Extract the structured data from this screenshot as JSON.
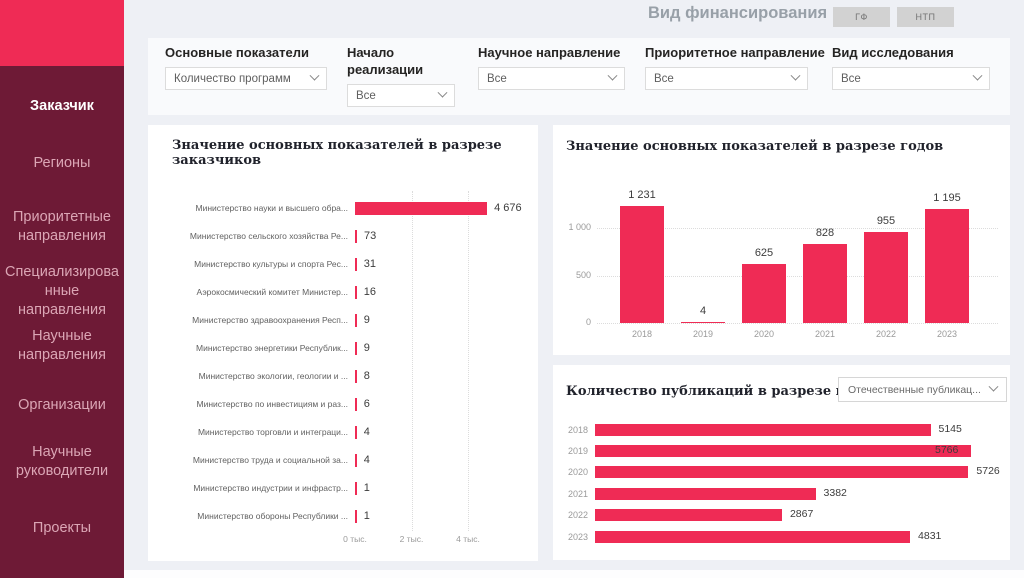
{
  "header": {
    "title": "Вид финансирования",
    "buttons": [
      {
        "label": "ГФ"
      },
      {
        "label": "НТП"
      }
    ]
  },
  "sidebar": {
    "items": [
      {
        "label": "Заказчик",
        "active": true
      },
      {
        "label": "Регионы",
        "active": false
      },
      {
        "label": "Приоритетные направления",
        "active": false
      },
      {
        "label": "Специализированные направления",
        "active": false
      },
      {
        "label": "Научные направления",
        "active": false
      },
      {
        "label": "Организации",
        "active": false
      },
      {
        "label": "Научные руководители",
        "active": false
      },
      {
        "label": "Проекты",
        "active": false
      }
    ]
  },
  "filters": [
    {
      "label": "Основные показатели",
      "value": "Количество программ"
    },
    {
      "label": "Начало реализации",
      "value": "Все"
    },
    {
      "label": "Научное направление",
      "value": "Все"
    },
    {
      "label": "Приоритетное направление",
      "value": "Все"
    },
    {
      "label": "Вид исследования",
      "value": "Все"
    }
  ],
  "chart_data": [
    {
      "id": "customers",
      "type": "bar",
      "orientation": "horizontal",
      "title": "Значение основных показателей в разрезе заказчиков",
      "categories": [
        "Министерство науки и высшего обра...",
        "Министерство сельского хозяйства Ре...",
        "Министерство культуры и спорта Рес...",
        "Аэрокосмический комитет Министер...",
        "Министерство здравоохранения Респ...",
        "Министерство энергетики Республик...",
        "Министерство экологии, геологии и ...",
        "Министерство по инвестициям и раз...",
        "Министерство торговли и интеграци...",
        "Министерство труда и социальной за...",
        "Министерство индустрии и инфрастр...",
        "Министерство обороны Республики ..."
      ],
      "values": [
        4676,
        73,
        31,
        16,
        9,
        9,
        8,
        6,
        4,
        4,
        1,
        1
      ],
      "value_labels": [
        "4 676",
        "73",
        "31",
        "16",
        "9",
        "9",
        "8",
        "6",
        "4",
        "4",
        "1",
        "1"
      ],
      "x_ticks": [
        {
          "label": "0 тыс.",
          "value": 0
        },
        {
          "label": "2 тыс.",
          "value": 2000
        },
        {
          "label": "4 тыс.",
          "value": 4000
        }
      ],
      "xlim": [
        0,
        4676
      ],
      "grid": "vertical-dotted",
      "legend": "none"
    },
    {
      "id": "years",
      "type": "bar",
      "orientation": "vertical",
      "title": "Значение основных показателей в разрезе годов",
      "categories": [
        "2018",
        "2019",
        "2020",
        "2021",
        "2022",
        "2023"
      ],
      "values": [
        1231,
        4,
        625,
        828,
        955,
        1195
      ],
      "value_labels": [
        "1 231",
        "4",
        "625",
        "828",
        "955",
        "1 195"
      ],
      "y_ticks": [
        {
          "label": "0",
          "value": 0
        },
        {
          "label": "500",
          "value": 500
        },
        {
          "label": "1 000",
          "value": 1000
        }
      ],
      "ylim": [
        0,
        1231
      ],
      "grid": "horizontal-dotted",
      "legend": "none"
    },
    {
      "id": "publications",
      "type": "bar",
      "orientation": "horizontal",
      "title": "Количество публикаций в разрезе годов",
      "dropdown": {
        "value": "Отечественные публикац..."
      },
      "categories": [
        "2018",
        "2019",
        "2020",
        "2021",
        "2022",
        "2023"
      ],
      "values": [
        5145,
        5766,
        5726,
        3382,
        2867,
        4831
      ],
      "value_labels": [
        "5145",
        "5766",
        "5726",
        "3382",
        "2867",
        "4831"
      ],
      "xlim": [
        0,
        5766
      ],
      "grid": "none",
      "legend": "none"
    }
  ],
  "colors": {
    "accent": "#ef2b55",
    "sidebar_bg": "#6e1a36",
    "sidebar_text": "#dba6b5",
    "page_bg": "#eef0f5",
    "card_bg": "#ffffff",
    "button_bg": "#d2d2d2",
    "title_gray": "#98a0a8"
  }
}
